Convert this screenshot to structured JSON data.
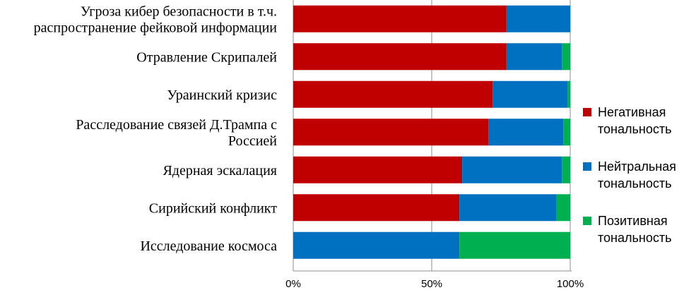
{
  "chart_data": {
    "type": "bar",
    "orientation": "horizontal",
    "stacked": true,
    "categories": [
      [
        "Угроза кибер безопасности в т.ч.",
        "распространение фейковой информации"
      ],
      [
        "Отравление Скрипалей"
      ],
      [
        "Ураинский кризис"
      ],
      [
        "Расследование связей Д.Трампа с",
        "Россией"
      ],
      [
        "Ядерная эскалация"
      ],
      [
        "Сирийский конфликт"
      ],
      [
        "Исследование космоса"
      ]
    ],
    "series": [
      {
        "name": [
          "Негативная",
          "тональность"
        ],
        "color": "#c00000",
        "values": [
          77,
          77,
          72,
          70.5,
          61,
          60,
          0
        ]
      },
      {
        "name": [
          "Нейтральная",
          "тональность"
        ],
        "color": "#0070c0",
        "values": [
          23,
          20,
          27,
          27,
          36,
          35,
          60
        ]
      },
      {
        "name": [
          "Позитивная",
          "тональность"
        ],
        "color": "#00b050",
        "values": [
          0,
          3,
          1,
          2.5,
          3,
          5,
          40
        ]
      }
    ],
    "xaxis": {
      "ticks": [
        0,
        50,
        100
      ],
      "tick_labels": [
        "0%",
        "50%",
        "100%"
      ],
      "range": [
        0,
        100
      ],
      "unit": "%"
    },
    "grid": true,
    "legend_position": "right"
  }
}
